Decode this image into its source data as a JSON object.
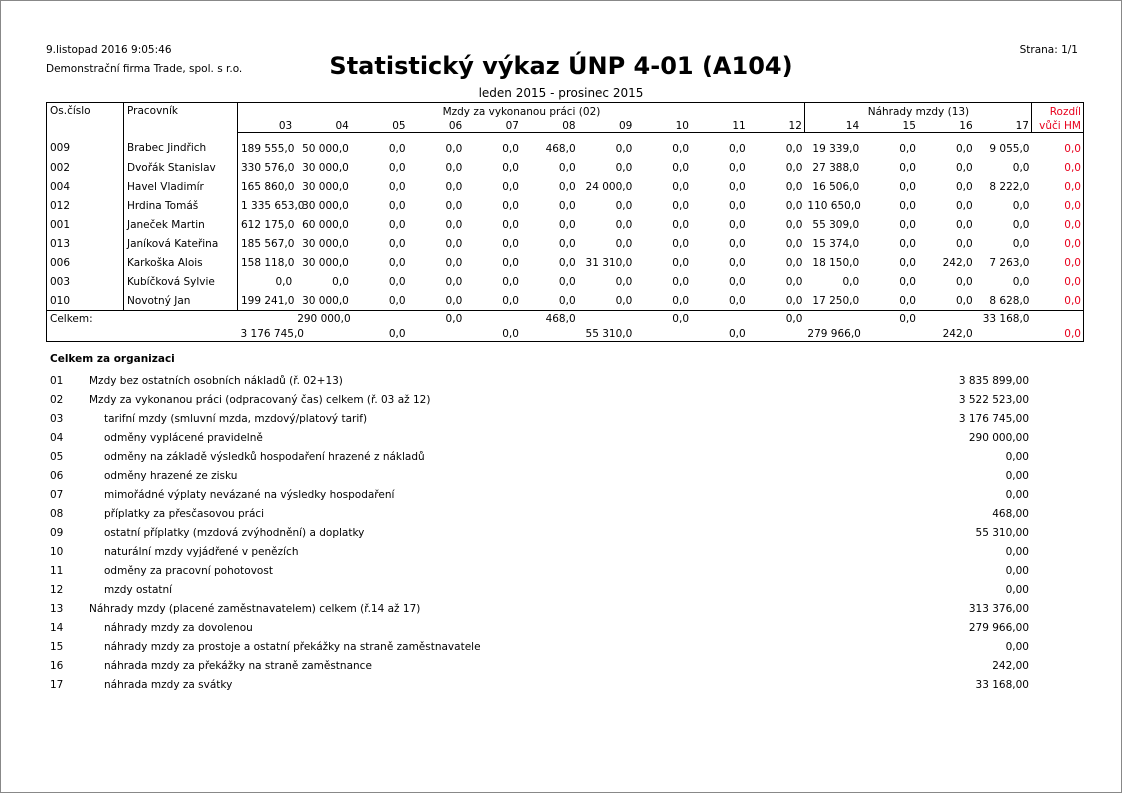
{
  "header": {
    "datetime": "9.listopad 2016  9:05:46",
    "company": "Demonstrační firma Trade, spol. s r.o.",
    "title": "Statistický výkaz ÚNP 4-01 (A104)",
    "period": "leden 2015 - prosinec 2015",
    "page": "Strana: 1/1"
  },
  "table": {
    "col_id": "Os.číslo",
    "col_name": "Pracovník",
    "group1": "Mzdy za vykonanou práci (02)",
    "group2": "Náhrady mzdy (13)",
    "diff_line1": "Rozdíl",
    "diff_line2": "vůči HM",
    "cols": [
      "03",
      "04",
      "05",
      "06",
      "07",
      "08",
      "09",
      "10",
      "11",
      "12",
      "14",
      "15",
      "16",
      "17"
    ],
    "rows": [
      {
        "id": "009",
        "name": "Brabec Jindřich",
        "v": [
          "189 555,0",
          "50 000,0",
          "0,0",
          "0,0",
          "0,0",
          "468,0",
          "0,0",
          "0,0",
          "0,0",
          "0,0",
          "19 339,0",
          "0,0",
          "0,0",
          "9 055,0"
        ],
        "diff": "0,0"
      },
      {
        "id": "002",
        "name": "Dvořák Stanislav",
        "v": [
          "330 576,0",
          "30 000,0",
          "0,0",
          "0,0",
          "0,0",
          "0,0",
          "0,0",
          "0,0",
          "0,0",
          "0,0",
          "27 388,0",
          "0,0",
          "0,0",
          "0,0"
        ],
        "diff": "0,0"
      },
      {
        "id": "004",
        "name": "Havel Vladimír",
        "v": [
          "165 860,0",
          "30 000,0",
          "0,0",
          "0,0",
          "0,0",
          "0,0",
          "24 000,0",
          "0,0",
          "0,0",
          "0,0",
          "16 506,0",
          "0,0",
          "0,0",
          "8 222,0"
        ],
        "diff": "0,0"
      },
      {
        "id": "012",
        "name": "Hrdina Tomáš",
        "v": [
          "1 335 653,0",
          "30 000,0",
          "0,0",
          "0,0",
          "0,0",
          "0,0",
          "0,0",
          "0,0",
          "0,0",
          "0,0",
          "110 650,0",
          "0,0",
          "0,0",
          "0,0"
        ],
        "diff": "0,0"
      },
      {
        "id": "001",
        "name": "Janeček Martin",
        "v": [
          "612 175,0",
          "60 000,0",
          "0,0",
          "0,0",
          "0,0",
          "0,0",
          "0,0",
          "0,0",
          "0,0",
          "0,0",
          "55 309,0",
          "0,0",
          "0,0",
          "0,0"
        ],
        "diff": "0,0"
      },
      {
        "id": "013",
        "name": "Janíková Kateřina",
        "v": [
          "185 567,0",
          "30 000,0",
          "0,0",
          "0,0",
          "0,0",
          "0,0",
          "0,0",
          "0,0",
          "0,0",
          "0,0",
          "15 374,0",
          "0,0",
          "0,0",
          "0,0"
        ],
        "diff": "0,0"
      },
      {
        "id": "006",
        "name": "Karkoška Alois",
        "v": [
          "158 118,0",
          "30 000,0",
          "0,0",
          "0,0",
          "0,0",
          "0,0",
          "31 310,0",
          "0,0",
          "0,0",
          "0,0",
          "18 150,0",
          "0,0",
          "242,0",
          "7 263,0"
        ],
        "diff": "0,0"
      },
      {
        "id": "003",
        "name": "Kubíčková Sylvie",
        "v": [
          "0,0",
          "0,0",
          "0,0",
          "0,0",
          "0,0",
          "0,0",
          "0,0",
          "0,0",
          "0,0",
          "0,0",
          "0,0",
          "0,0",
          "0,0",
          "0,0"
        ],
        "diff": "0,0"
      },
      {
        "id": "010",
        "name": "Novotný Jan",
        "v": [
          "199 241,0",
          "30 000,0",
          "0,0",
          "0,0",
          "0,0",
          "0,0",
          "0,0",
          "0,0",
          "0,0",
          "0,0",
          "17 250,0",
          "0,0",
          "0,0",
          "8 628,0"
        ],
        "diff": "0,0"
      }
    ],
    "total_label": "Celkem:",
    "totals": [
      "3 176 745,0",
      "290 000,0",
      "0,0",
      "0,0",
      "0,0",
      "468,0",
      "55 310,0",
      "0,0",
      "0,0",
      "0,0",
      "279 966,0",
      "0,0",
      "242,0",
      "33 168,0"
    ],
    "total_diff": "0,0"
  },
  "summary": {
    "heading": "Celkem za organizaci",
    "rows": [
      {
        "code": "01",
        "label": "Mzdy bez ostatních osobních nákladů (ř. 02+13)",
        "value": "3 835 899,00",
        "indent": false
      },
      {
        "code": "02",
        "label": "Mzdy za vykonanou práci (odpracovaný čas) celkem (ř. 03 až 12)",
        "value": "3 522 523,00",
        "indent": false
      },
      {
        "code": "03",
        "label": "tarifní mzdy (smluvní mzda, mzdový/platový tarif)",
        "value": "3 176 745,00",
        "indent": true
      },
      {
        "code": "04",
        "label": "odměny vyplácené pravidelně",
        "value": "290 000,00",
        "indent": true
      },
      {
        "code": "05",
        "label": "odměny na základě výsledků hospodaření hrazené z nákladů",
        "value": "0,00",
        "indent": true
      },
      {
        "code": "06",
        "label": "odměny hrazené ze zisku",
        "value": "0,00",
        "indent": true
      },
      {
        "code": "07",
        "label": "mimořádné výplaty nevázané na výsledky hospodaření",
        "value": "0,00",
        "indent": true
      },
      {
        "code": "08",
        "label": "příplatky za přesčasovou práci",
        "value": "468,00",
        "indent": true
      },
      {
        "code": "09",
        "label": "ostatní příplatky (mzdová zvýhodnění) a doplatky",
        "value": "55 310,00",
        "indent": true
      },
      {
        "code": "10",
        "label": "naturální mzdy vyjádřené v penězích",
        "value": "0,00",
        "indent": true
      },
      {
        "code": "11",
        "label": "odměny za pracovní pohotovost",
        "value": "0,00",
        "indent": true
      },
      {
        "code": "12",
        "label": "mzdy ostatní",
        "value": "0,00",
        "indent": true
      },
      {
        "code": "13",
        "label": "Náhrady mzdy (placené zaměstnavatelem) celkem (ř.14 až 17)",
        "value": "313 376,00",
        "indent": false
      },
      {
        "code": "14",
        "label": "náhrady mzdy za dovolenou",
        "value": "279 966,00",
        "indent": true
      },
      {
        "code": "15",
        "label": "náhrady mzdy za prostoje a ostatní překážky na straně zaměstnavatele",
        "value": "0,00",
        "indent": true
      },
      {
        "code": "16",
        "label": "náhrada mzdy za překážky na straně zaměstnance",
        "value": "242,00",
        "indent": true
      },
      {
        "code": "17",
        "label": "náhrada mzdy za svátky",
        "value": "33 168,00",
        "indent": true
      }
    ]
  },
  "colors": {
    "diff": "#e8001c",
    "text": "#000000"
  }
}
